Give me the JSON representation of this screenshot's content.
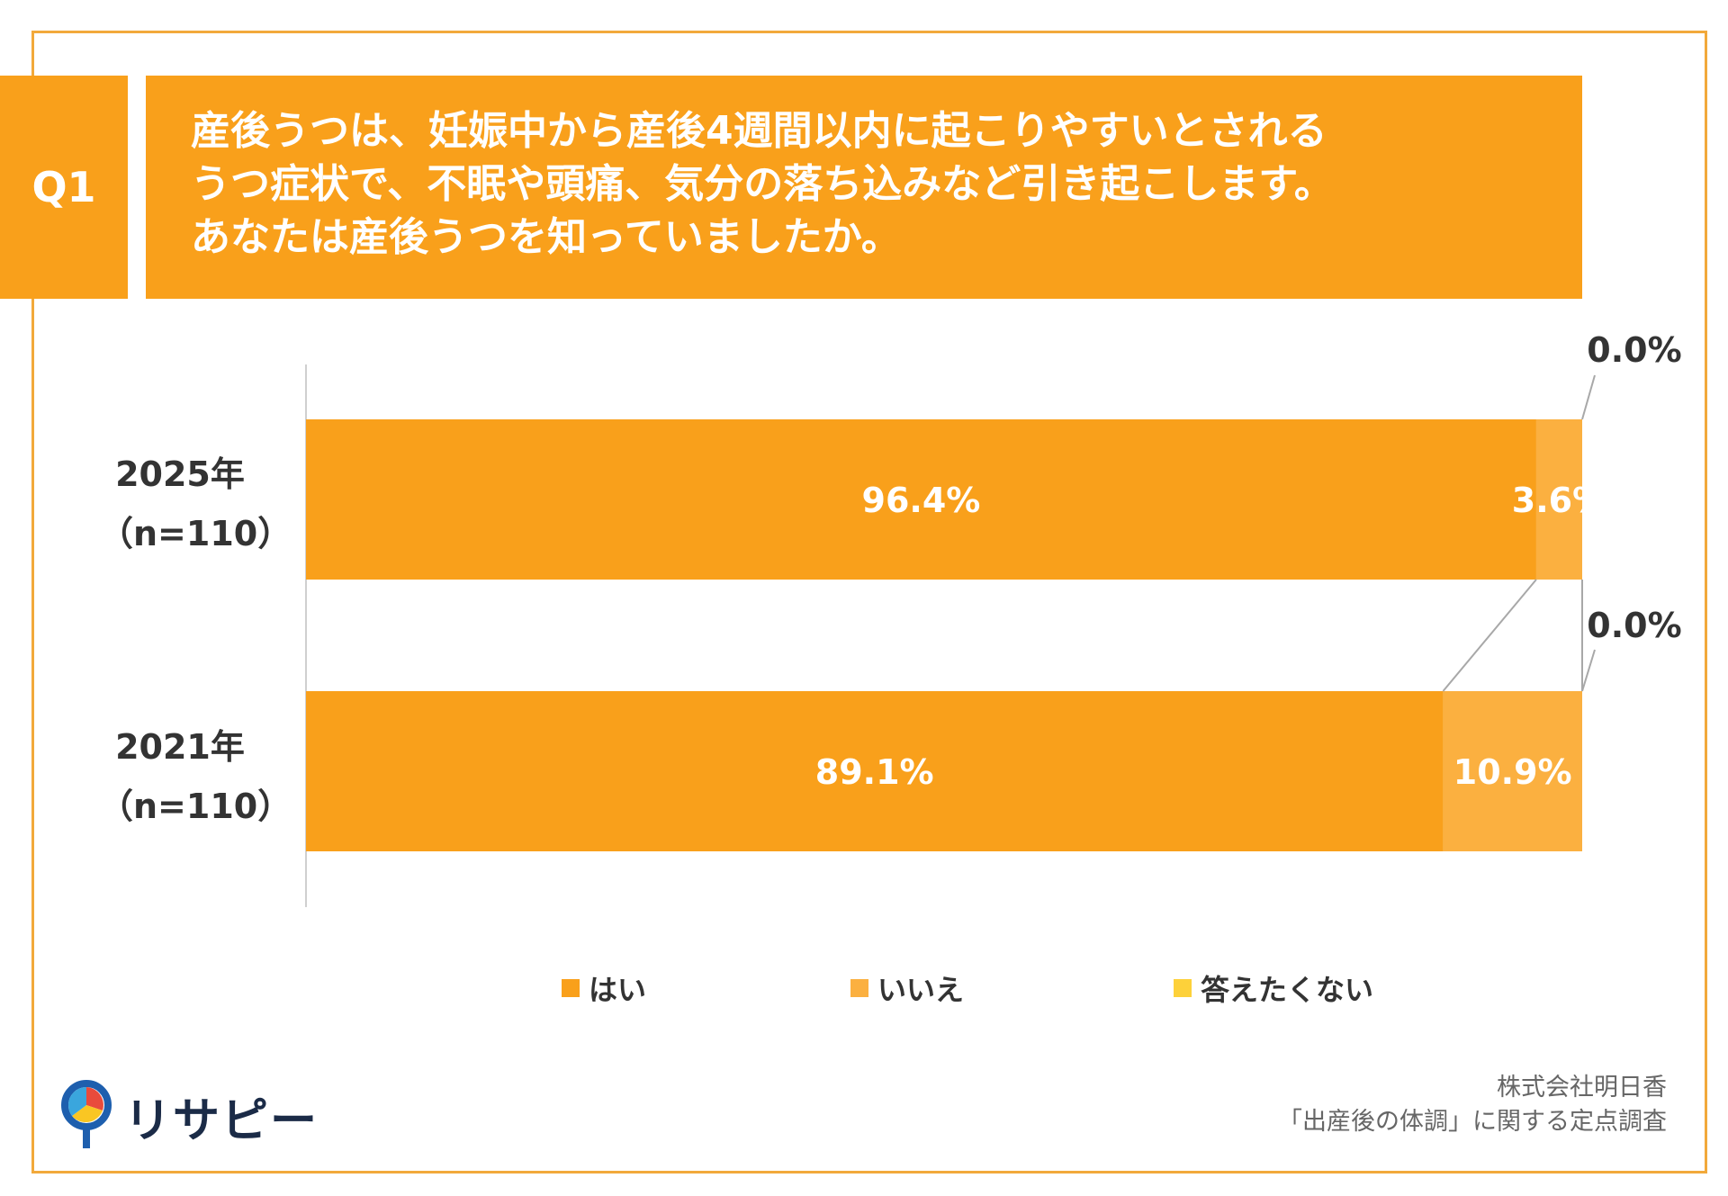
{
  "question": {
    "badge": "Q1",
    "lines": [
      "産後うつは、妊娠中から産後4週間以内に起こりやすいとされる",
      "うつ症状で、不眠や頭痛、気分の落ち込みなど引き起こします。",
      "あなたは産後うつを知っていましたか。"
    ]
  },
  "chart_data": {
    "type": "bar",
    "orientation": "horizontal",
    "stacked": true,
    "stack_total": 100,
    "categories": [
      "2025年\n（n=110）",
      "2021年\n（n=110）"
    ],
    "category_lines": [
      [
        "2025年",
        "（n=110）"
      ],
      [
        "2021年",
        "（n=110）"
      ]
    ],
    "series": [
      {
        "name": "はい",
        "values": [
          96.4,
          89.1
        ],
        "color": "#F9A01B",
        "labels": [
          "96.4%",
          "89.1%"
        ]
      },
      {
        "name": "いいえ",
        "values": [
          3.6,
          10.9
        ],
        "color": "#FBB040",
        "labels": [
          "3.6%",
          "10.9%"
        ]
      },
      {
        "name": "答えたくない",
        "values": [
          0.0,
          0.0
        ],
        "color": "#FDD13A",
        "labels": [
          "0.0%",
          "0.0%"
        ]
      }
    ],
    "legend_position": "bottom",
    "xlim": [
      0,
      100
    ],
    "gridlines": false
  },
  "source": {
    "line1": "株式会社明日香",
    "line2": "「出産後の体調」に関する定点調査"
  },
  "logo": {
    "text": "リサピー"
  }
}
